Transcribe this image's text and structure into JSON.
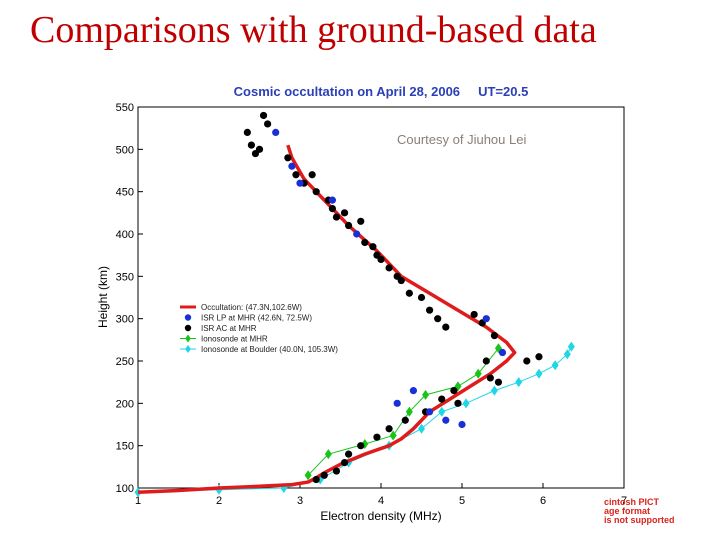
{
  "slide": {
    "title": "Comparisons with ground-based data",
    "courtesy": "Courtesy of Jiuhou Lei",
    "pict_notice": [
      "cintosh PICT",
      "age format",
      "is not supported"
    ]
  },
  "chart_data": {
    "type": "scatter",
    "title": "Cosmic occultation on April 28, 2006     UT=20.5",
    "xlabel": "Electron density (MHz)",
    "ylabel": "Height (km)",
    "xlim": [
      1,
      7
    ],
    "ylim": [
      100,
      550
    ],
    "xticks": [
      "1",
      "2",
      "3",
      "4",
      "5",
      "6",
      "7"
    ],
    "yticks": [
      "100",
      "150",
      "200",
      "250",
      "300",
      "350",
      "400",
      "450",
      "500",
      "550"
    ],
    "legend_position": "center-left",
    "colors": {
      "title": "#2b3fb8",
      "occultation": "#e01b1b",
      "isr_lp": "#1a2fd6",
      "isr_ac": "#000000",
      "ionosonde_mhr": "#19c419",
      "ionosonde_boulder": "#1fd6e6"
    },
    "series": [
      {
        "name": "Occultation: (47.3N,102.6W)",
        "marker": "line",
        "x": [
          1.0,
          1.5,
          2.0,
          2.5,
          2.9,
          3.1,
          3.2,
          3.3,
          3.5,
          3.8,
          4.1,
          4.25,
          4.4,
          4.6,
          4.85,
          5.1,
          5.35,
          5.55,
          5.65,
          5.55,
          5.3,
          4.95,
          4.6,
          4.25,
          3.95,
          3.6,
          3.3,
          3.05,
          2.9,
          2.85
        ],
        "y": [
          95,
          97,
          100,
          102,
          104,
          107,
          112,
          118,
          128,
          140,
          150,
          158,
          170,
          190,
          205,
          220,
          235,
          250,
          260,
          272,
          290,
          310,
          330,
          350,
          380,
          410,
          440,
          465,
          490,
          505
        ]
      },
      {
        "name": "ISR LP at MHR (42.6N, 72.5W)",
        "marker": "circle",
        "x": [
          2.7,
          2.9,
          3.0,
          3.4,
          3.7,
          4.2,
          4.4,
          4.6,
          4.8,
          5.0,
          5.3,
          5.5
        ],
        "y": [
          520,
          480,
          460,
          440,
          400,
          200,
          215,
          190,
          180,
          175,
          300,
          260
        ]
      },
      {
        "name": "ISR AC at MHR",
        "marker": "circle",
        "x": [
          2.35,
          2.4,
          2.45,
          2.5,
          2.55,
          2.6,
          2.85,
          2.95,
          3.05,
          3.15,
          3.2,
          3.35,
          3.4,
          3.45,
          3.55,
          3.6,
          3.75,
          3.8,
          3.9,
          3.95,
          4.0,
          4.1,
          4.2,
          4.25,
          4.35,
          4.5,
          4.6,
          4.7,
          4.8,
          5.15,
          5.25,
          5.4,
          5.3,
          5.35,
          5.45,
          5.8,
          5.95,
          4.9,
          4.95,
          4.75,
          4.55,
          4.3,
          4.1,
          3.95,
          3.75,
          3.6,
          3.55,
          3.45,
          3.3,
          3.2
        ],
        "y": [
          520,
          505,
          495,
          500,
          540,
          530,
          490,
          470,
          460,
          470,
          450,
          440,
          430,
          420,
          425,
          410,
          415,
          390,
          385,
          375,
          370,
          360,
          350,
          345,
          330,
          325,
          310,
          300,
          290,
          305,
          295,
          280,
          250,
          230,
          225,
          250,
          255,
          215,
          200,
          205,
          190,
          180,
          170,
          160,
          150,
          140,
          130,
          120,
          115,
          110
        ]
      },
      {
        "name": "Ionosonde at MHR",
        "marker": "diamond",
        "x": [
          3.1,
          3.35,
          3.8,
          4.15,
          4.35,
          4.55,
          4.95,
          5.2,
          5.45
        ],
        "y": [
          115,
          140,
          152,
          162,
          190,
          210,
          220,
          235,
          265
        ]
      },
      {
        "name": "Ionosonde at Boulder (40.0N, 105.3W)",
        "marker": "diamond",
        "x": [
          1.0,
          2.0,
          2.8,
          3.25,
          3.6,
          4.1,
          4.5,
          4.75,
          5.05,
          5.4,
          5.7,
          5.95,
          6.15,
          6.3,
          6.35
        ],
        "y": [
          95,
          98,
          100,
          110,
          130,
          150,
          170,
          190,
          200,
          215,
          225,
          235,
          245,
          258,
          267
        ]
      }
    ]
  }
}
